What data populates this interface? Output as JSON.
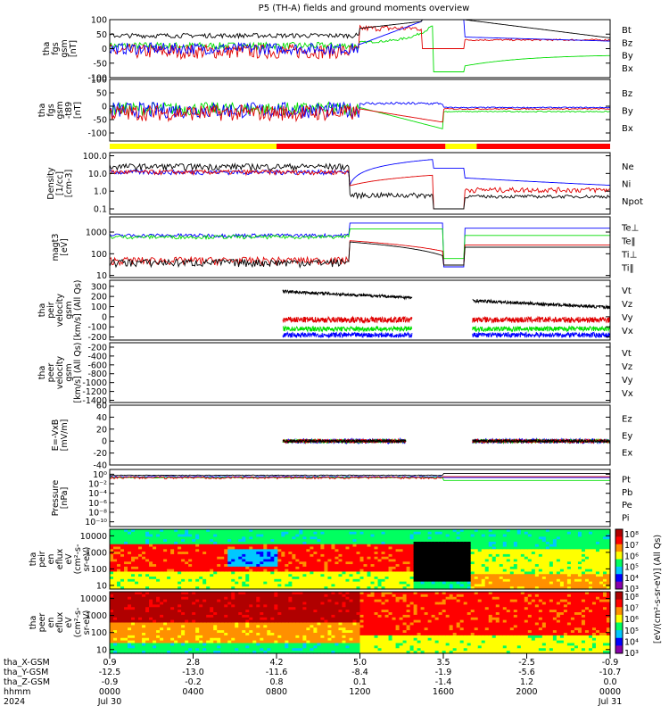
{
  "title": "P5 (TH-A) fields and ground moments overview",
  "colors": {
    "black": "#000000",
    "red": "#e00000",
    "green": "#00dd00",
    "blue": "#0000ff",
    "mode_yellow": "#ffff00",
    "mode_red": "#ff0000"
  },
  "chart_data": [
    {
      "type": "line",
      "panel": "fgs_gsm",
      "ylabel": [
        "tha",
        "fgs",
        "gsm",
        "[nT]"
      ],
      "ylim": [
        -100,
        100
      ],
      "yticks": [
        "100",
        "50",
        "0",
        "-50",
        "-100"
      ],
      "legend": [
        {
          "label": "Bt",
          "color": "black"
        },
        {
          "label": "Bz",
          "color": "red"
        },
        {
          "label": "By",
          "color": "green"
        },
        {
          "label": "Bx",
          "color": "blue"
        }
      ]
    },
    {
      "type": "line",
      "panel": "fgs_gsm_t89",
      "ylabel": [
        "tha",
        "fgs",
        "gsm",
        "-t89",
        "[nT]"
      ],
      "ylim": [
        -130,
        100
      ],
      "yticks": [
        "100",
        "50",
        "0",
        "-50",
        "-100"
      ],
      "legend": [
        {
          "label": "Bz",
          "color": "red"
        },
        {
          "label": "By",
          "color": "green"
        },
        {
          "label": "Bx",
          "color": "blue"
        }
      ]
    },
    {
      "type": "bar",
      "panel": "mode_bar",
      "segments": [
        {
          "start": 0.0,
          "end": 8.0,
          "color": "mode_yellow"
        },
        {
          "start": 8.0,
          "end": 16.1,
          "color": "mode_red"
        },
        {
          "start": 16.1,
          "end": 17.6,
          "color": "mode_yellow"
        },
        {
          "start": 17.6,
          "end": 24.0,
          "color": "mode_red"
        }
      ]
    },
    {
      "type": "line",
      "panel": "density",
      "ylabel": [
        "Density",
        "[1/cc]",
        "[cm-3]"
      ],
      "yscale": "log",
      "ylim": [
        0.05,
        150
      ],
      "yticks": [
        "100.0",
        "10.0",
        "1.0",
        "0.1"
      ],
      "legend": [
        {
          "label": "Ne",
          "color": "red"
        },
        {
          "label": "Ni",
          "color": "black"
        },
        {
          "label": "Npot",
          "color": "blue"
        }
      ]
    },
    {
      "type": "line",
      "panel": "temperature",
      "ylabel": [
        "magt3",
        "[eV]"
      ],
      "yscale": "log",
      "ylim": [
        8,
        5000
      ],
      "yticks": [
        "1000",
        "100",
        "10"
      ],
      "legend": [
        {
          "label": "Te⊥",
          "color": "red"
        },
        {
          "label": "Te‖",
          "color": "black"
        },
        {
          "label": "Ti⊥",
          "color": "green"
        },
        {
          "label": "Ti‖",
          "color": "green"
        }
      ]
    },
    {
      "type": "line",
      "panel": "peir_velocity",
      "ylabel": [
        "tha",
        "peir",
        "velocity",
        "gsm",
        "[km/s] (All Qs)"
      ],
      "ylim": [
        -230,
        360
      ],
      "yticks": [
        "300",
        "200",
        "100",
        "0",
        "-100",
        "-200"
      ],
      "legend": [
        {
          "label": "Vt",
          "color": "black"
        },
        {
          "label": "Vz",
          "color": "red"
        },
        {
          "label": "Vy",
          "color": "green"
        },
        {
          "label": "Vx",
          "color": "blue"
        }
      ]
    },
    {
      "type": "line",
      "panel": "peer_velocity",
      "ylabel": [
        "tha",
        "peer",
        "velocity",
        "gsm",
        "[km/s] (All Qs)"
      ],
      "ylim": [
        -1450,
        -100
      ],
      "yticks": [
        "-200",
        "-400",
        "-600",
        "-800",
        "-1000",
        "-1200",
        "-1400"
      ],
      "legend": [
        {
          "label": "Vt",
          "color": "black"
        },
        {
          "label": "Vz",
          "color": "red"
        },
        {
          "label": "Vy",
          "color": "green"
        },
        {
          "label": "Vx",
          "color": "blue"
        }
      ]
    },
    {
      "type": "line",
      "panel": "efield",
      "ylabel": [
        "E=-VxB",
        "[mV/m]"
      ],
      "ylim": [
        -40,
        60
      ],
      "yticks": [
        "60",
        "40",
        "20",
        "0",
        "-20",
        "-40"
      ],
      "legend": [
        {
          "label": "Ez",
          "color": "red"
        },
        {
          "label": "Ey",
          "color": "green"
        },
        {
          "label": "Ex",
          "color": "blue"
        }
      ]
    },
    {
      "type": "line",
      "panel": "pressure",
      "ylabel": [
        "Pressure",
        "[nPa]"
      ],
      "yscale": "log",
      "ylim": [
        1e-11,
        10
      ],
      "yticks": [
        "10⁰",
        "10⁻²",
        "10⁻⁴",
        "10⁻⁶",
        "10⁻⁸",
        "10⁻¹⁰"
      ],
      "legend": [
        {
          "label": "Pt",
          "color": "black"
        },
        {
          "label": "Pb",
          "color": "red"
        },
        {
          "label": "Pe",
          "color": "green"
        },
        {
          "label": "Pi",
          "color": "blue"
        }
      ]
    },
    {
      "type": "heatmap",
      "panel": "peir_en_eflux",
      "ylabel": [
        "tha",
        "peir",
        "en",
        "eflux",
        "eV",
        "(cm²-s-",
        "sr-eV)"
      ],
      "yscale": "log",
      "ylim": [
        6,
        25000
      ],
      "yticks": [
        "10000",
        "1000",
        "100",
        "10"
      ],
      "colorbar_ticks": [
        "10⁸",
        "10⁷",
        "10⁶",
        "10⁵",
        "10⁴",
        "10³"
      ]
    },
    {
      "type": "heatmap",
      "panel": "peer_en_eflux",
      "ylabel": [
        "tha",
        "peer",
        "en",
        "eflux",
        "eV",
        "(cm²-s-",
        "sr-eV)"
      ],
      "yscale": "log",
      "ylim": [
        6,
        25000
      ],
      "yticks": [
        "10000",
        "1000",
        "100",
        "10"
      ],
      "colorbar_ticks": [
        "10⁸",
        "10⁷",
        "10⁶",
        "10⁵",
        "10⁴",
        "10³"
      ]
    }
  ],
  "colorbar_label": "[eV/(cm²-s-sr-eV)] (All Qs)",
  "xaxis": {
    "xlim": [
      0,
      24
    ],
    "tick_hours": [
      0,
      4,
      8,
      12,
      16,
      20,
      24
    ],
    "row_labels": [
      "tha_X-GSM",
      "tha_Y-GSM",
      "tha_Z-GSM",
      "hhmm",
      "2024"
    ],
    "rows": {
      "x_gsm": [
        "0.9",
        "2.8",
        "4.2",
        "5.0",
        "3.5",
        "-2.5",
        "-0.9"
      ],
      "y_gsm": [
        "-12.5",
        "-13.0",
        "-11.6",
        "-8.4",
        "-1.9",
        "-5.6",
        "-10.7"
      ],
      "z_gsm": [
        "-0.9",
        "-0.2",
        "0.8",
        "0.1",
        "-1.4",
        "1.2",
        "0.0"
      ],
      "hhmm": [
        "0000",
        "0400",
        "0800",
        "1200",
        "1600",
        "2000",
        "0000"
      ]
    },
    "date_start": "Jul 30",
    "date_end": "Jul 31"
  }
}
